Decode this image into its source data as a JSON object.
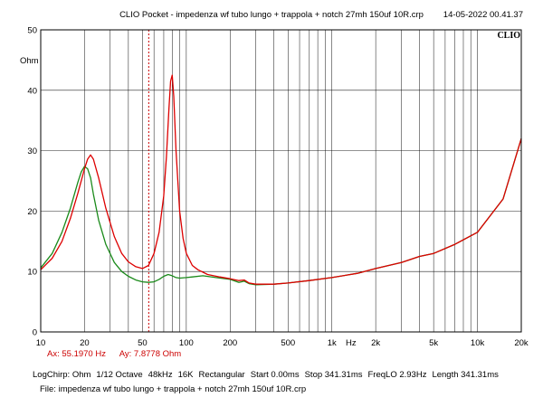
{
  "header": {
    "title": "CLIO Pocket - impedenza wf tubo lungo + trappola + notch 27mh 150uf 10R.crp",
    "datetime": "14-05-2022 00.41.37",
    "logo": "CLIO"
  },
  "cursor": {
    "ax_label": "Ax: 55.1970 Hz",
    "ay_label": "Ay: 7.8778 Ohm",
    "x_hz": 55.197,
    "color": "#cc0000"
  },
  "footer": {
    "settings": [
      "LogChirp: Ohm",
      "1/12 Octave",
      "48kHz",
      "16K",
      "Rectangular",
      "Start 0.00ms",
      "Stop 341.31ms",
      "FreqLO 2.93Hz",
      "Length 341.31ms"
    ],
    "file": "File: impedenza wf tubo lungo + trappola + notch 27mh 150uf 10R.crp"
  },
  "chart_data": {
    "type": "line",
    "title": "CLIO Pocket - impedenza wf tubo lungo + trappola + notch 27mh 150uf 10R.crp",
    "xscale": "log",
    "xlim": [
      10,
      20000
    ],
    "ylim": [
      0,
      50
    ],
    "xlabel": "Hz",
    "ylabel": "Ohm",
    "grid": true,
    "x_ticks": [
      {
        "value": 10,
        "label": "10"
      },
      {
        "value": 20,
        "label": "20"
      },
      {
        "value": 50,
        "label": "50"
      },
      {
        "value": 100,
        "label": "100"
      },
      {
        "value": 200,
        "label": "200"
      },
      {
        "value": 500,
        "label": "500"
      },
      {
        "value": 1000,
        "label": "1k"
      },
      {
        "value": 2000,
        "label": "2k"
      },
      {
        "value": 5000,
        "label": "5k"
      },
      {
        "value": 10000,
        "label": "10k"
      },
      {
        "value": 20000,
        "label": "20k"
      }
    ],
    "y_ticks": [
      {
        "value": 0,
        "label": "0"
      },
      {
        "value": 10,
        "label": "10"
      },
      {
        "value": 20,
        "label": "20"
      },
      {
        "value": 30,
        "label": "30"
      },
      {
        "value": 40,
        "label": "40"
      },
      {
        "value": 50,
        "label": "50"
      }
    ],
    "series": [
      {
        "name": "red",
        "color": "#dd0000",
        "x": [
          10,
          12,
          14,
          16,
          18,
          20,
          21,
          22,
          23,
          25,
          28,
          32,
          36,
          40,
          45,
          50,
          55,
          60,
          65,
          70,
          73,
          76,
          78,
          80,
          82,
          85,
          90,
          95,
          100,
          110,
          120,
          140,
          170,
          200,
          230,
          250,
          270,
          300,
          400,
          500,
          700,
          1000,
          1500,
          2000,
          3000,
          4000,
          5000,
          7000,
          10000,
          15000,
          20000
        ],
        "values": [
          10.3,
          12.2,
          15,
          18.8,
          23,
          27,
          28.6,
          29.3,
          28.6,
          25.5,
          20.5,
          15.8,
          13,
          11.6,
          10.8,
          10.5,
          11,
          13,
          16.5,
          22.5,
          29,
          37,
          41.5,
          42.5,
          39,
          30,
          20,
          15.5,
          13,
          11,
          10.3,
          9.5,
          9.1,
          8.8,
          8.5,
          8.6,
          8.1,
          7.9,
          7.9,
          8.1,
          8.5,
          9,
          9.7,
          10.5,
          11.5,
          12.5,
          13,
          14.5,
          16.5,
          22,
          32
        ]
      },
      {
        "name": "green",
        "color": "#1a8a1a",
        "x": [
          10,
          12,
          14,
          16,
          18,
          19,
          20,
          21,
          22,
          23,
          25,
          28,
          32,
          36,
          40,
          45,
          50,
          55,
          60,
          65,
          70,
          75,
          80,
          85,
          90,
          100,
          110,
          130,
          160,
          200,
          230,
          250,
          270,
          300,
          400,
          500,
          700,
          1000,
          1500,
          2000,
          3000,
          4000,
          5000,
          7000,
          10000,
          15000,
          20000
        ],
        "values": [
          10.6,
          13,
          16.5,
          20.5,
          24.8,
          26.5,
          27.4,
          27,
          25.5,
          22.8,
          18.5,
          14.5,
          11.5,
          10,
          9.2,
          8.6,
          8.3,
          8.2,
          8.3,
          8.7,
          9.2,
          9.5,
          9.3,
          9,
          8.9,
          9,
          9.1,
          9.3,
          9,
          8.7,
          8.2,
          8.4,
          8,
          7.8,
          7.9,
          8.1,
          8.5,
          9,
          9.7,
          10.5,
          11.5,
          12.5,
          13,
          14.5,
          16.5,
          22,
          32
        ]
      }
    ]
  }
}
